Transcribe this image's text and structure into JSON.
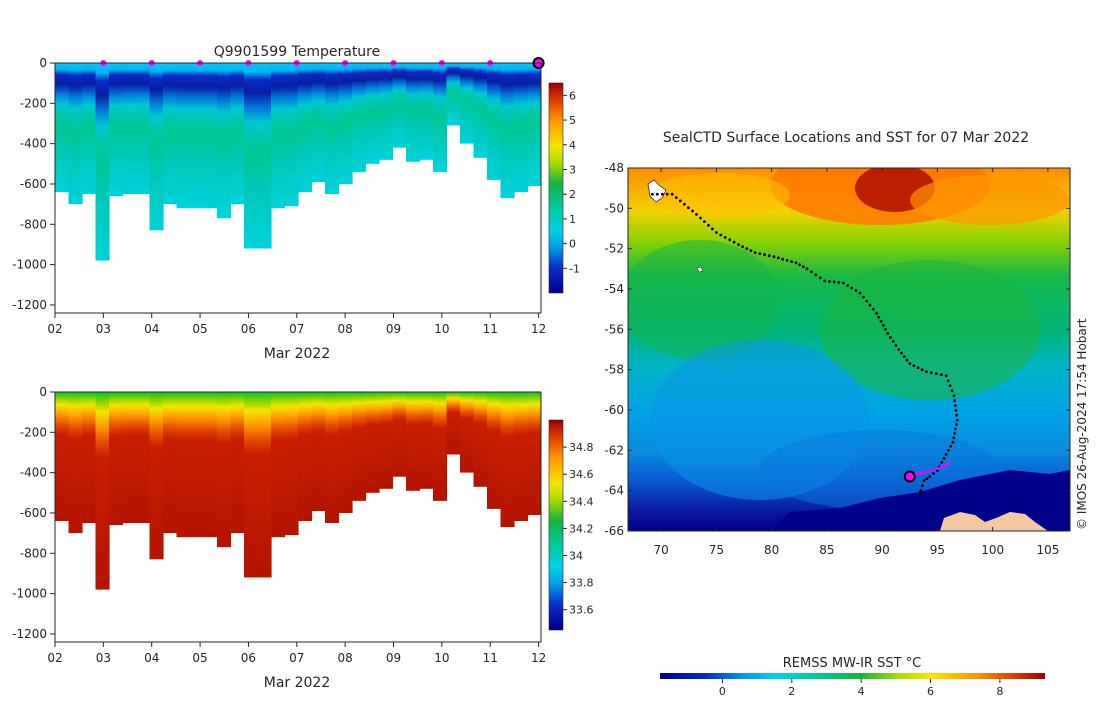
{
  "colors": {
    "cold": "#00008a",
    "cyan": "#00c8ff",
    "teal": "#00c8a0",
    "green": "#16b84a",
    "yellow": "#f0e600",
    "orange": "#ff8c00",
    "red": "#c01800",
    "land": "#f5c8a0",
    "magenta": "#ff00ff",
    "track": "#000000"
  },
  "chart_data": [
    {
      "type": "heatmap",
      "id": "temperature-section",
      "title": "Q9901599  Temperature",
      "xlabel": "Mar 2022",
      "x_ticks": [
        "02",
        "03",
        "04",
        "05",
        "06",
        "07",
        "08",
        "09",
        "10",
        "11",
        "12"
      ],
      "x_range_days": [
        2,
        12.05
      ],
      "ylim": [
        -1240,
        0
      ],
      "y_ticks": [
        0,
        -200,
        -400,
        -600,
        -800,
        -1000,
        -1200
      ],
      "y_tick_labels": [
        "0",
        "-200",
        "-400",
        "-600",
        "-800",
        "-1000",
        "-1200"
      ],
      "colorbar": {
        "ticks": [
          6,
          5,
          4,
          3,
          2,
          1,
          0,
          -1
        ],
        "tick_labels": [
          "6",
          "5",
          "4",
          "3",
          "2",
          "1",
          "0",
          "-1"
        ],
        "range": [
          -2,
          6.5
        ]
      },
      "profile_max_depth_m": [
        640,
        700,
        650,
        980,
        660,
        650,
        650,
        830,
        700,
        720,
        720,
        720,
        770,
        700,
        920,
        920,
        720,
        710,
        640,
        590,
        650,
        600,
        540,
        500,
        480,
        420,
        490,
        480,
        540,
        310,
        400,
        470,
        580,
        670,
        640,
        610
      ],
      "surface_markers_day": [
        3,
        4,
        5,
        6,
        7,
        8,
        9,
        10,
        11
      ]
    },
    {
      "type": "heatmap",
      "id": "salinity-section",
      "xlabel": "Mar 2022",
      "x_ticks": [
        "02",
        "03",
        "04",
        "05",
        "06",
        "07",
        "08",
        "09",
        "10",
        "11",
        "12"
      ],
      "x_range_days": [
        2,
        12.05
      ],
      "ylim": [
        -1240,
        0
      ],
      "y_ticks": [
        0,
        -200,
        -400,
        -600,
        -800,
        -1000,
        -1200
      ],
      "y_tick_labels": [
        "0",
        "-200",
        "-400",
        "-600",
        "-800",
        "-1000",
        "-1200"
      ],
      "colorbar": {
        "ticks": [
          34.8,
          34.6,
          34.4,
          34.2,
          34.0,
          33.8,
          33.6
        ],
        "tick_labels": [
          "34.8",
          "34.6",
          "34.4",
          "34.2",
          "34",
          "33.8",
          "33.6"
        ],
        "range": [
          33.45,
          35.0
        ]
      },
      "profile_max_depth_m": [
        640,
        700,
        650,
        980,
        660,
        650,
        650,
        830,
        700,
        720,
        720,
        720,
        770,
        700,
        920,
        920,
        720,
        710,
        640,
        590,
        650,
        600,
        540,
        500,
        480,
        420,
        490,
        480,
        540,
        310,
        400,
        470,
        580,
        670,
        640,
        610
      ]
    },
    {
      "type": "map",
      "id": "sst-map",
      "title": "SealCTD Surface Locations and SST for 07 Mar 2022",
      "lon_range": [
        67,
        107
      ],
      "lat_range": [
        -66,
        -48
      ],
      "x_ticks": [
        70,
        75,
        80,
        85,
        90,
        95,
        100,
        105
      ],
      "x_tick_labels": [
        "70",
        "75",
        "80",
        "85",
        "90",
        "95",
        "100",
        "105"
      ],
      "y_ticks": [
        -48,
        -50,
        -52,
        -54,
        -56,
        -58,
        -60,
        -62,
        -64,
        -66
      ],
      "y_tick_labels": [
        "-48",
        "-50",
        "-52",
        "-54",
        "-56",
        "-58",
        "-60",
        "-62",
        "-64",
        "-66"
      ],
      "colorbar_label": "REMSS MW-IR SST °C",
      "colorbar_ticks": [
        0,
        2,
        4,
        6,
        8
      ],
      "colorbar_tick_labels": [
        "0",
        "2",
        "4",
        "6",
        "8"
      ],
      "colorbar_range": [
        -1.8,
        9.3
      ],
      "track": [
        [
          69.2,
          -49.3
        ],
        [
          71,
          -49.3
        ],
        [
          73.2,
          -50.3
        ],
        [
          75,
          -51.2
        ],
        [
          77,
          -51.8
        ],
        [
          78.5,
          -52.2
        ],
        [
          80.2,
          -52.4
        ],
        [
          82.2,
          -52.7
        ],
        [
          83.2,
          -53
        ],
        [
          84.8,
          -53.6
        ],
        [
          86.5,
          -53.7
        ],
        [
          88,
          -54.2
        ],
        [
          89.5,
          -55.2
        ],
        [
          90.5,
          -56.2
        ],
        [
          91.5,
          -57
        ],
        [
          92.5,
          -57.7
        ],
        [
          94,
          -58.1
        ],
        [
          95.8,
          -58.3
        ],
        [
          96.5,
          -59.3
        ],
        [
          96.8,
          -60.5
        ],
        [
          96.4,
          -61.6
        ],
        [
          95.6,
          -62.4
        ],
        [
          95,
          -63
        ],
        [
          94.3,
          -63.3
        ],
        [
          93.8,
          -63.5
        ],
        [
          93.5,
          -64
        ],
        [
          93.4,
          -64.2
        ]
      ],
      "recent_track": [
        [
          92.5,
          -63.2
        ],
        [
          93.8,
          -63.1
        ],
        [
          95,
          -62.9
        ],
        [
          96.3,
          -62.6
        ]
      ],
      "last_position": [
        92.5,
        -63.3
      ]
    }
  ],
  "watermark": "© IMOS 26-Aug-2024 17:54 Hobart"
}
